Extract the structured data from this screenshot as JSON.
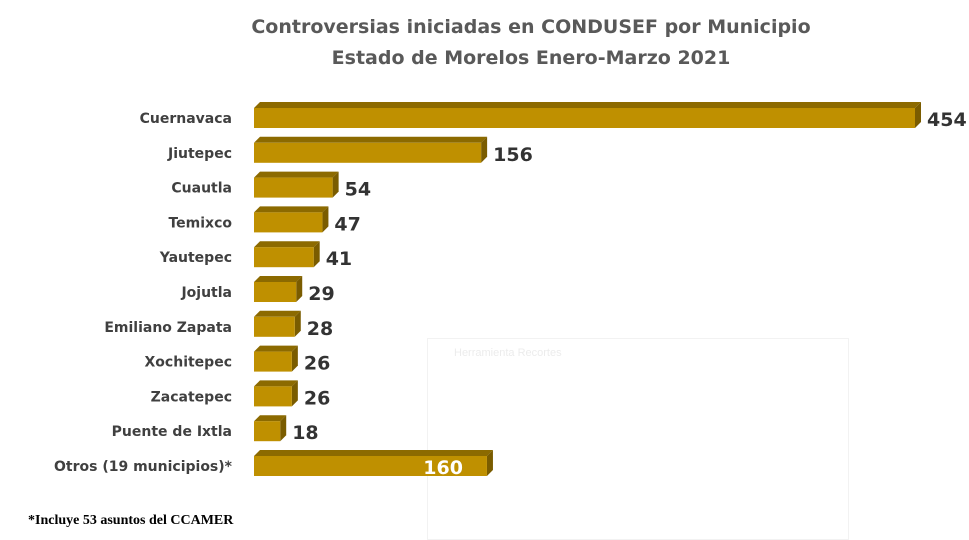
{
  "chart_data": {
    "type": "bar",
    "orientation": "horizontal",
    "title": "Controversias iniciadas en CONDUSEF por Municipio",
    "subtitle": "Estado de Morelos Enero-Marzo 2021",
    "categories": [
      "Cuernavaca",
      "Jiutepec",
      "Cuautla",
      "Temixco",
      "Yautepec",
      "Jojutla",
      "Emiliano Zapata",
      "Xochitepec",
      "Zacatepec",
      "Puente de Ixtla",
      "Otros (19 municipios)*"
    ],
    "values": [
      454,
      156,
      54,
      47,
      41,
      29,
      28,
      26,
      26,
      18,
      160
    ],
    "bar_color": "#BF9000",
    "xlabel": "",
    "ylabel": "",
    "xlim": [
      0,
      454
    ],
    "grid": false,
    "legend": "none"
  },
  "footnote": "*Incluye 53 asuntos del CCAMER",
  "ghost_window": "Herramienta Recortes"
}
